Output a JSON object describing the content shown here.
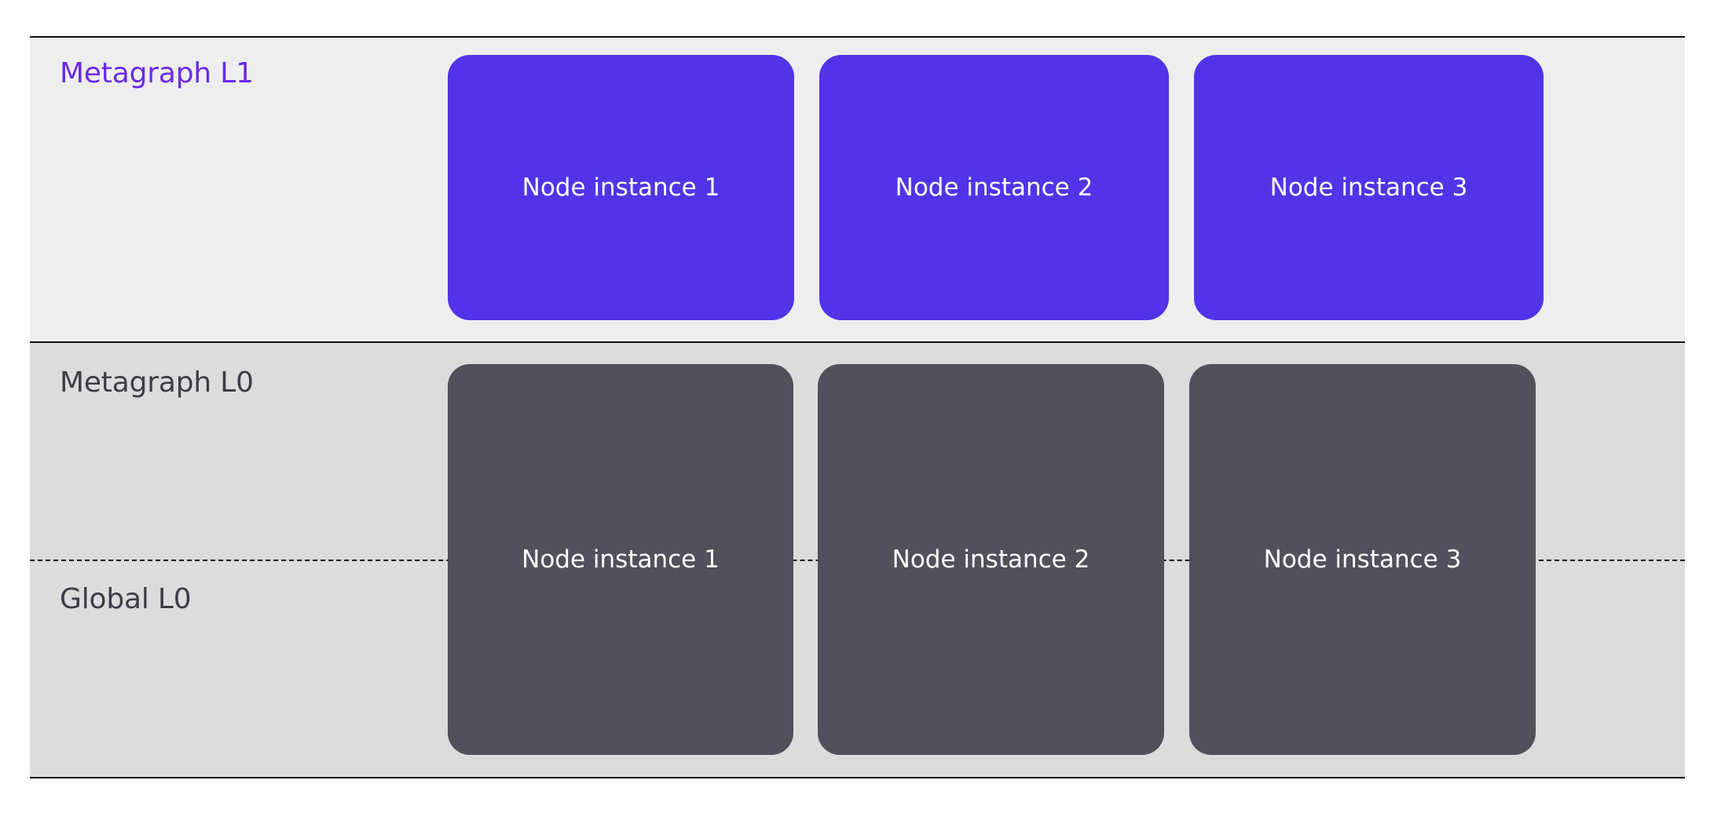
{
  "layers": {
    "metagraph_l1": {
      "label": "Metagraph L1",
      "color": "#6a2ae8",
      "node_color": "#5233e8",
      "nodes": [
        "Node instance 1",
        "Node instance 2",
        "Node instance 3"
      ]
    },
    "metagraph_l0": {
      "label": "Metagraph L0",
      "color": "#3e3d45"
    },
    "global_l0": {
      "label": "Global L0",
      "color": "#3e3d45"
    },
    "shared_l0": {
      "node_color": "#52505b",
      "nodes": [
        "Node instance 1",
        "Node instance 2",
        "Node instance 3"
      ]
    }
  }
}
